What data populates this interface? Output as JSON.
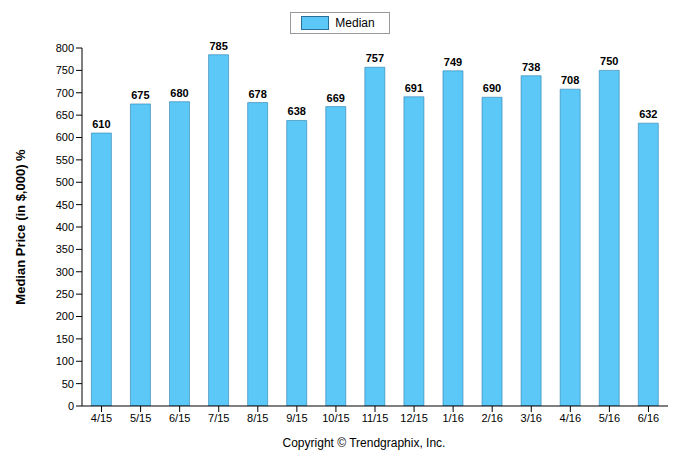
{
  "chart_data": {
    "type": "bar",
    "y_label": "Median Price (in $,000) %",
    "annotations": [
      "Copyright © Trendgraphix, Inc."
    ],
    "categories": [
      "4/15",
      "5/15",
      "6/15",
      "7/15",
      "8/15",
      "9/15",
      "10/15",
      "11/15",
      "12/15",
      "1/16",
      "2/16",
      "3/16",
      "4/16",
      "5/16",
      "6/16"
    ],
    "series": [
      {
        "name": "Median",
        "color": "#5cc8f7",
        "values": [
          610,
          675,
          680,
          785,
          678,
          638,
          669,
          757,
          691,
          749,
          690,
          738,
          708,
          750,
          632
        ]
      }
    ],
    "ylim": [
      0,
      800
    ],
    "yticks": [
      0,
      50,
      100,
      150,
      200,
      250,
      300,
      350,
      400,
      450,
      500,
      550,
      600,
      650,
      700,
      750,
      800
    ],
    "grid": false,
    "legend": "top",
    "data_labels": true
  }
}
